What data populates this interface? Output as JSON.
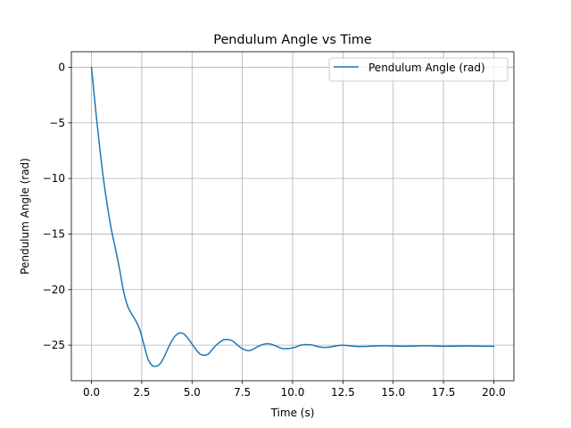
{
  "chart_data": {
    "type": "line",
    "title": "Pendulum Angle vs Time",
    "xlabel": "Time (s)",
    "ylabel": "Pendulum Angle (rad)",
    "xlim": [
      -1.0,
      21.0
    ],
    "ylim": [
      -28.2,
      1.4
    ],
    "xticks": [
      0.0,
      2.5,
      5.0,
      7.5,
      10.0,
      12.5,
      15.0,
      17.5,
      20.0
    ],
    "xtick_labels": [
      "0.0",
      "2.5",
      "5.0",
      "7.5",
      "10.0",
      "12.5",
      "15.0",
      "17.5",
      "20.0"
    ],
    "yticks": [
      0,
      -5,
      -10,
      -15,
      -20,
      -25
    ],
    "ytick_labels": [
      "0",
      "−5",
      "−10",
      "−15",
      "−20",
      "−25"
    ],
    "grid": true,
    "legend_position": "top-right",
    "series": [
      {
        "name": "Pendulum Angle (rad)",
        "color": "#1f77b4",
        "x": [
          0.0,
          0.2,
          0.4,
          0.6,
          0.8,
          1.0,
          1.2,
          1.4,
          1.6,
          1.8,
          2.0,
          2.2,
          2.4,
          2.6,
          2.8,
          3.0,
          3.2,
          3.4,
          3.6,
          3.8,
          4.0,
          4.2,
          4.4,
          4.6,
          4.8,
          5.0,
          5.2,
          5.4,
          5.6,
          5.8,
          6.0,
          6.2,
          6.4,
          6.6,
          6.8,
          7.0,
          7.2,
          7.4,
          7.6,
          7.8,
          8.0,
          8.3,
          8.6,
          8.9,
          9.2,
          9.5,
          9.8,
          10.1,
          10.4,
          10.7,
          11.0,
          11.3,
          11.6,
          11.9,
          12.2,
          12.5,
          12.8,
          13.2,
          13.6,
          14.0,
          14.5,
          15.0,
          15.5,
          16.0,
          16.5,
          17.0,
          17.5,
          18.0,
          18.5,
          19.0,
          19.5,
          20.0
        ],
        "values": [
          0.0,
          -3.7,
          -7.1,
          -10.1,
          -12.6,
          -14.7,
          -16.4,
          -18.2,
          -20.2,
          -21.5,
          -22.2,
          -22.8,
          -23.6,
          -24.9,
          -26.2,
          -26.8,
          -26.9,
          -26.7,
          -26.1,
          -25.3,
          -24.6,
          -24.1,
          -23.9,
          -24.0,
          -24.4,
          -24.9,
          -25.4,
          -25.8,
          -25.9,
          -25.8,
          -25.4,
          -25.0,
          -24.7,
          -24.5,
          -24.5,
          -24.6,
          -24.9,
          -25.2,
          -25.4,
          -25.5,
          -25.4,
          -25.1,
          -24.9,
          -24.9,
          -25.1,
          -25.3,
          -25.3,
          -25.2,
          -25.0,
          -24.95,
          -25.0,
          -25.15,
          -25.2,
          -25.15,
          -25.05,
          -25.0,
          -25.05,
          -25.12,
          -25.12,
          -25.08,
          -25.05,
          -25.08,
          -25.1,
          -25.08,
          -25.05,
          -25.07,
          -25.1,
          -25.09,
          -25.07,
          -25.08,
          -25.1,
          -25.1
        ]
      }
    ]
  }
}
